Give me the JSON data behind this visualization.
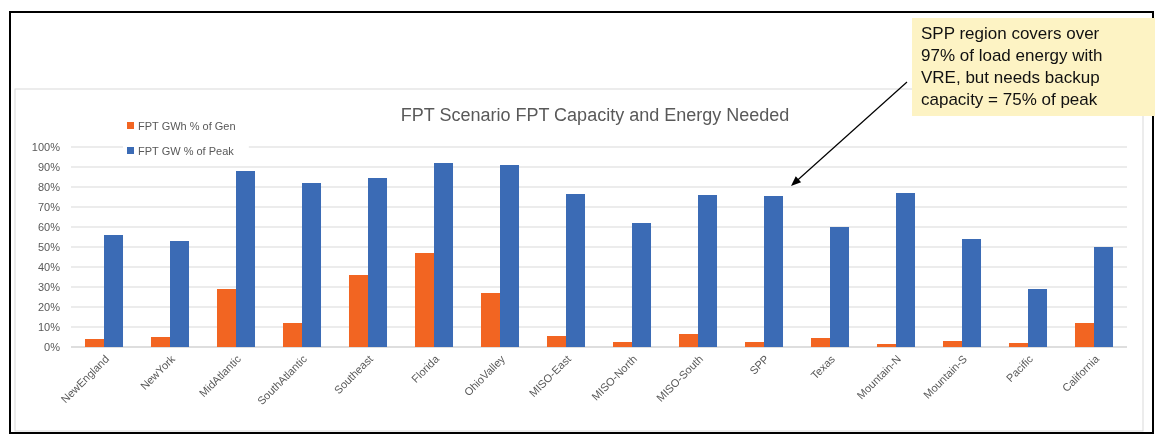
{
  "chart_data": {
    "type": "bar",
    "title": "FPT Scenario FPT Capacity and Energy Needed",
    "categories": [
      "NewEngland",
      "NewYork",
      "MidAtlantic",
      "SouthAtlantic",
      "Southeast",
      "Florida",
      "OhioValley",
      "MISO-East",
      "MISO-North",
      "MISO-South",
      "SPP",
      "Texas",
      "Mountain-N",
      "Mountain-S",
      "Pacific",
      "California"
    ],
    "series": [
      {
        "name": "FPT GWh % of Gen",
        "color": "#f26522",
        "values": [
          4,
          5,
          29,
          12,
          36,
          47,
          27,
          5.5,
          2.5,
          6.5,
          2.5,
          4.5,
          1.5,
          3,
          2,
          12
        ]
      },
      {
        "name": "FPT GW % of Peak",
        "color": "#3b6bb5",
        "values": [
          56,
          53,
          88,
          82,
          84.5,
          92,
          91,
          76.5,
          62,
          76,
          75.5,
          60,
          77,
          54,
          29,
          50
        ]
      }
    ],
    "ylim": [
      0,
      100
    ],
    "yticks": [
      {
        "value": 0,
        "label": "0%"
      },
      {
        "value": 10,
        "label": "10%"
      },
      {
        "value": 20,
        "label": "20%"
      },
      {
        "value": 30,
        "label": "30%"
      },
      {
        "value": 40,
        "label": "40%"
      },
      {
        "value": 50,
        "label": "50%"
      },
      {
        "value": 60,
        "label": "60%"
      },
      {
        "value": 70,
        "label": "70%"
      },
      {
        "value": 80,
        "label": "80%"
      },
      {
        "value": 90,
        "label": "90%"
      },
      {
        "value": 100,
        "label": "100%"
      }
    ],
    "grid": "y",
    "legend": "top left",
    "annotations": [
      "SPP region covers over 97% of load energy with VRE, but needs backup capacity = 75% of peak"
    ]
  }
}
